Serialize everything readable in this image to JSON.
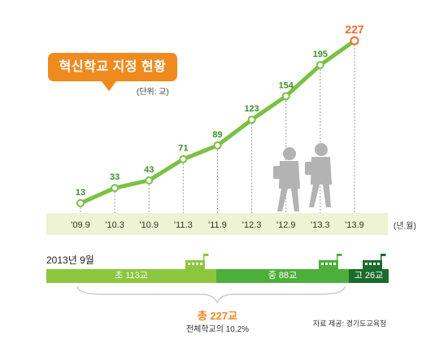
{
  "title": "혁신학교 지정 현황",
  "unit": "(단위: 교)",
  "year_unit": "(년.월)",
  "chart_data": {
    "type": "line",
    "x": [
      "'09.9",
      "'10.3",
      "'10.9",
      "'11.3",
      "'11.9",
      "'12.3",
      "'12.9",
      "'13.3",
      "'13.9"
    ],
    "series": [
      {
        "values": [
          13,
          33,
          43,
          71,
          89,
          123,
          154,
          195,
          227
        ]
      }
    ],
    "ylim": [
      0,
      240
    ],
    "grid": false,
    "colors": {
      "line": "#7ac143",
      "last_point": "#ef6b2a",
      "axis_band": "#eef3d4"
    }
  },
  "breakdown": {
    "label": "2013년 9월",
    "segments": [
      {
        "label": "초 113교",
        "value": 113,
        "color": "#8cc63f"
      },
      {
        "label": "중 88교",
        "value": 88,
        "color": "#4caf3a"
      },
      {
        "label": "고 26교",
        "value": 26,
        "color": "#1b6b2c"
      }
    ],
    "total_label": "총 227교",
    "total_sub": "전체학교의 10.2%"
  },
  "source": "자료 제공: 경기도교육청"
}
